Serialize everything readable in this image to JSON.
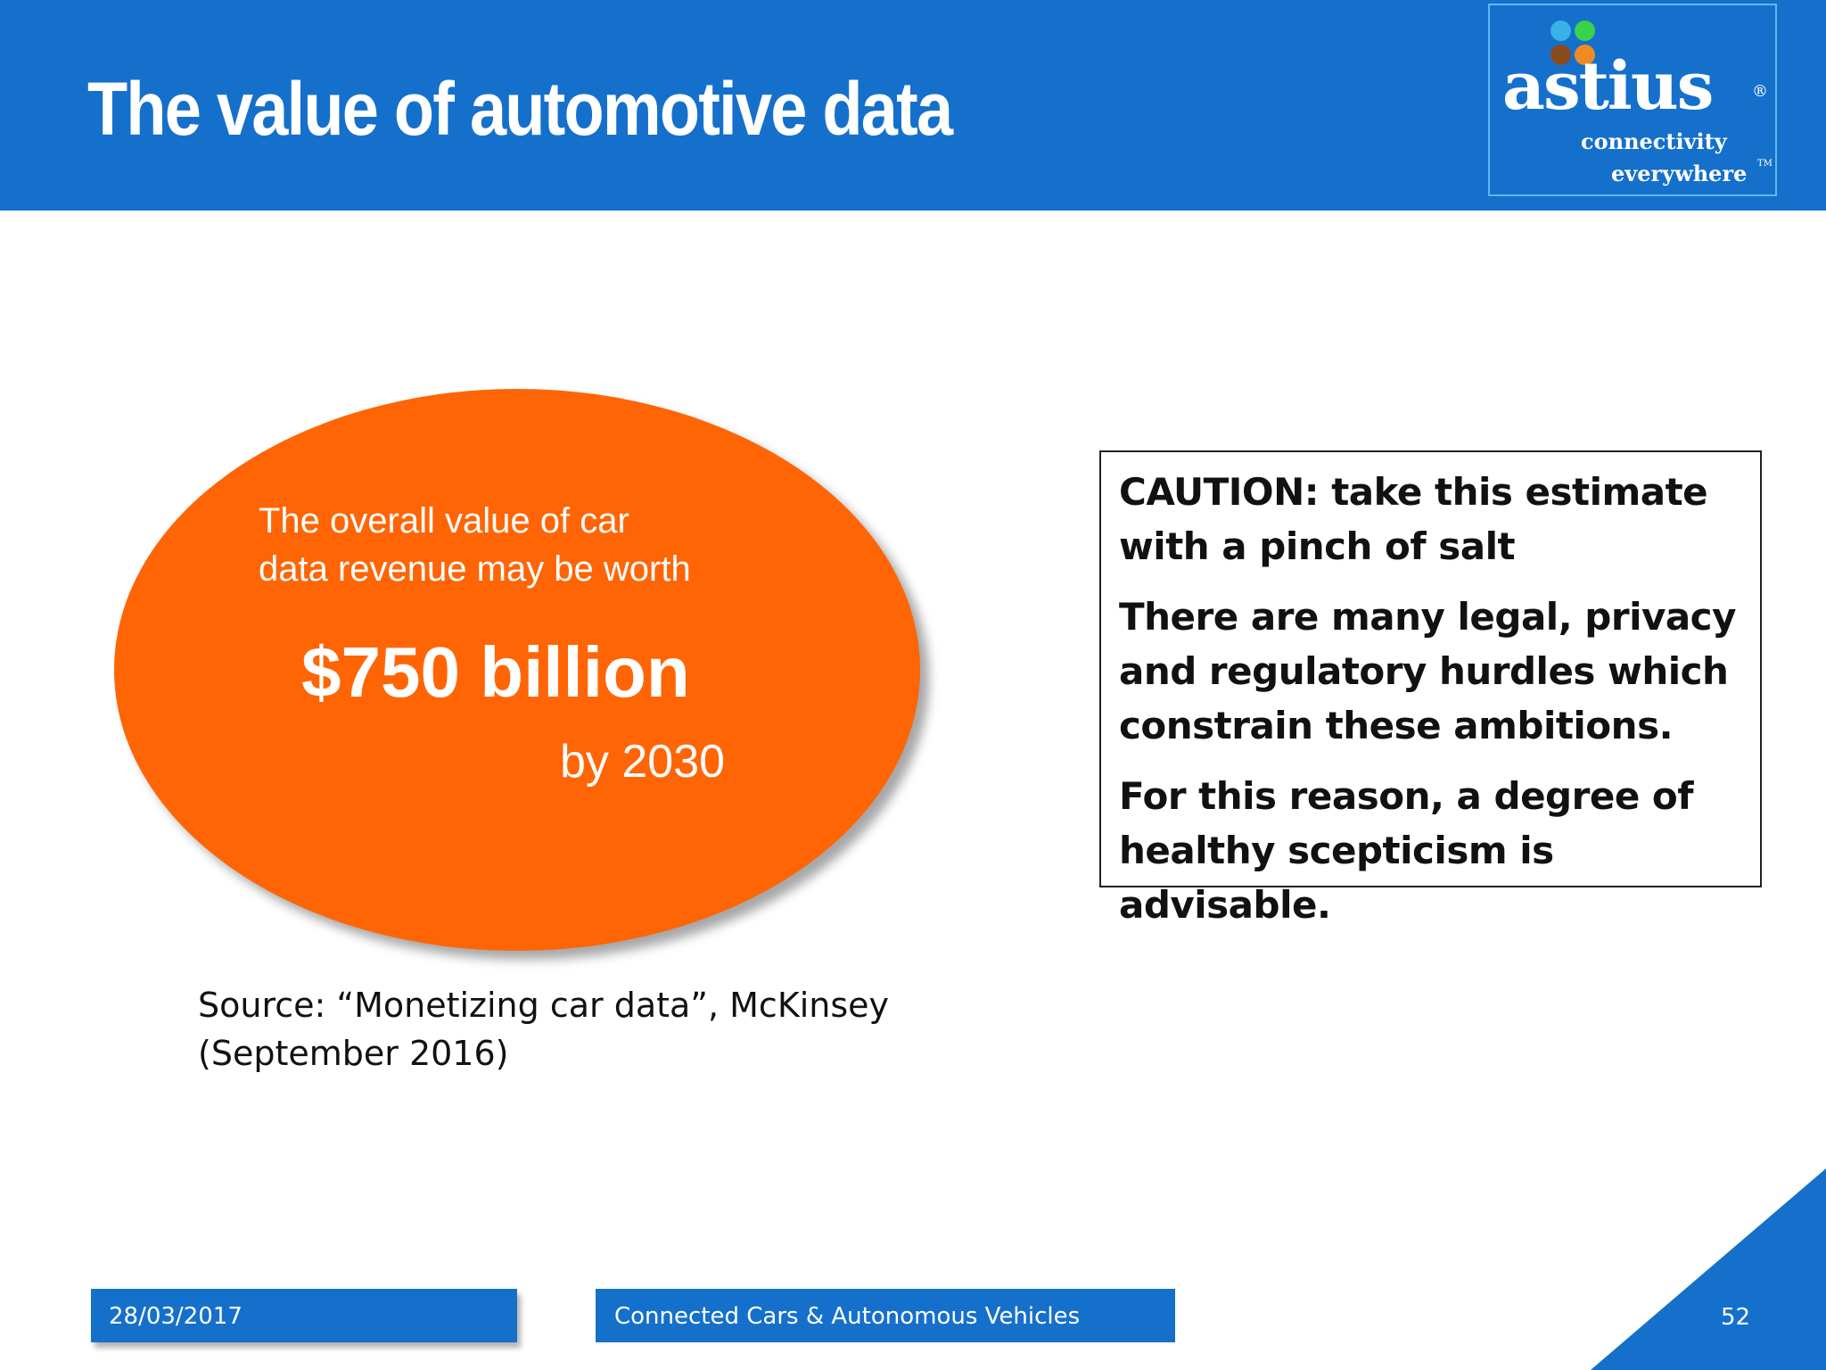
{
  "header": {
    "title": "The value of automotive data"
  },
  "logo": {
    "wordmark": "astius",
    "registered": "®",
    "tagline_line1": "connectivity",
    "tagline_line2": "everywhere",
    "trademark": "TM",
    "dot_colors": [
      "#3ab0e8",
      "#39d24a",
      "#8b4a1e",
      "#f08a24"
    ]
  },
  "callout": {
    "line1": "The overall value of car",
    "line2": "data revenue may be worth",
    "amount": "$750 billion",
    "timeframe": "by 2030",
    "color": "#ff6505"
  },
  "source": {
    "line1": "Source: “Monetizing car data”, McKinsey",
    "line2": "(September 2016)"
  },
  "caution": {
    "heading": "CAUTION: take this estimate with a pinch of salt",
    "para1": "There are many legal, privacy and regulatory hurdles which constrain these ambitions.",
    "para2": "For this reason, a degree of healthy scepticism is advisable."
  },
  "footer": {
    "date": "28/03/2017",
    "title": "Connected Cars & Autonomous Vehicles",
    "page_number": "52"
  },
  "colors": {
    "brand_blue": "#1570cc",
    "accent_orange": "#ff6505"
  }
}
